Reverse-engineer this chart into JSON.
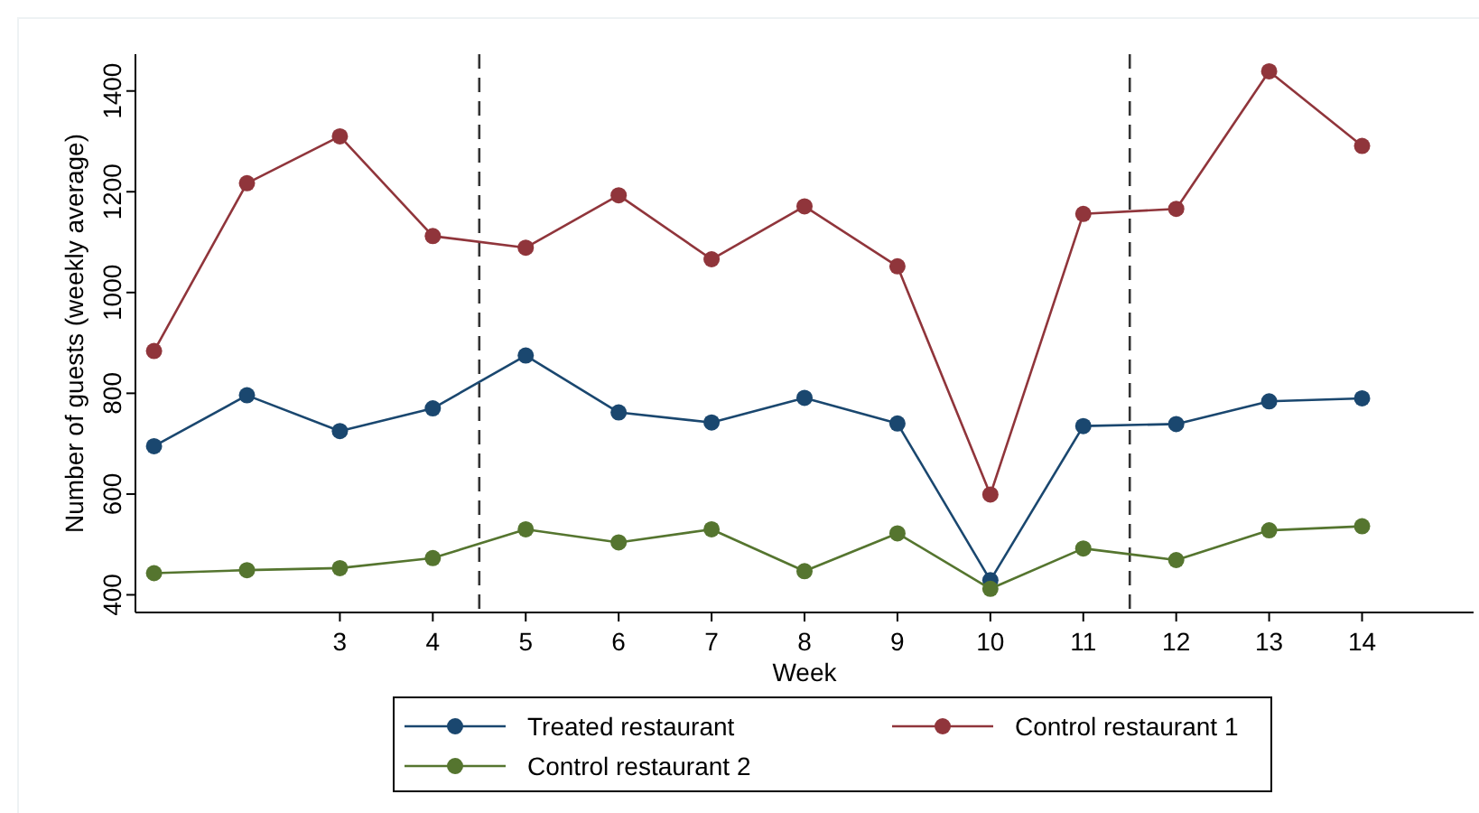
{
  "chart_data": {
    "type": "line",
    "xlabel": "Week",
    "ylabel": "Number of guests (weekly average)",
    "x": [
      1,
      2,
      3,
      4,
      5,
      6,
      7,
      8,
      9,
      10,
      11,
      12,
      13,
      14
    ],
    "xlim": [
      0.8,
      15.2
    ],
    "xticks": [
      3,
      4,
      5,
      6,
      7,
      8,
      9,
      10,
      11,
      12,
      13,
      14
    ],
    "ylim": [
      365,
      1473
    ],
    "yticks": [
      400,
      600,
      800,
      1000,
      1200,
      1400
    ],
    "marker": "circle",
    "legend": "bottom",
    "grid": false,
    "ref_lines": [
      {
        "axis": "x",
        "value": 4.5,
        "color": "#333333",
        "line_style": "dashed"
      },
      {
        "axis": "x",
        "value": 11.5,
        "color": "#333333",
        "line_style": "dashed"
      }
    ],
    "series": [
      {
        "name": "Treated restaurant",
        "color": "#1a476f",
        "values": [
          695,
          796,
          725,
          770,
          875,
          762,
          742,
          791,
          740,
          429,
          735,
          739,
          784,
          790
        ]
      },
      {
        "name": "Control restaurant 1",
        "color": "#90353b",
        "values": [
          884,
          1217,
          1310,
          1112,
          1089,
          1193,
          1066,
          1171,
          1052,
          599,
          1156,
          1166,
          1439,
          1291
        ]
      },
      {
        "name": "Control restaurant 2",
        "color": "#55752f",
        "values": [
          443,
          449,
          453,
          473,
          530,
          504,
          530,
          447,
          522,
          412,
          492,
          469,
          528,
          536
        ]
      }
    ]
  }
}
